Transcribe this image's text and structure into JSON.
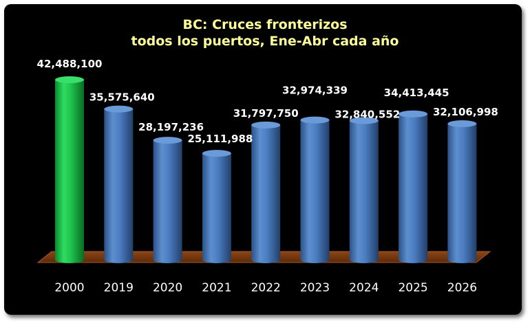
{
  "chart_data": {
    "type": "bar",
    "title": "BC: Cruces fronterizos",
    "subtitle": "todos los puertos, Ene-Abr cada año",
    "categories": [
      "2000",
      "2019",
      "2020",
      "2021",
      "2022",
      "2023",
      "2024",
      "2025",
      "2026"
    ],
    "values": [
      42488100,
      35575640,
      28197236,
      25111988,
      31797750,
      32974339,
      32840552,
      34413445,
      32106998
    ],
    "value_labels": [
      "42,488,100",
      "35,575,640",
      "28,197,236",
      "25,111,988",
      "31,797,750",
      "32,974,339",
      "32,840,552",
      "34,413,445",
      "32,106,998"
    ],
    "highlight_category": "2000",
    "colors": {
      "highlight": "#1fbf4b",
      "bars": "#4f81bd",
      "floor": "#7b3a10",
      "background": "#000000",
      "title": "#ffff99",
      "labels": "#ffffff"
    },
    "grid": false,
    "legend": "none"
  }
}
